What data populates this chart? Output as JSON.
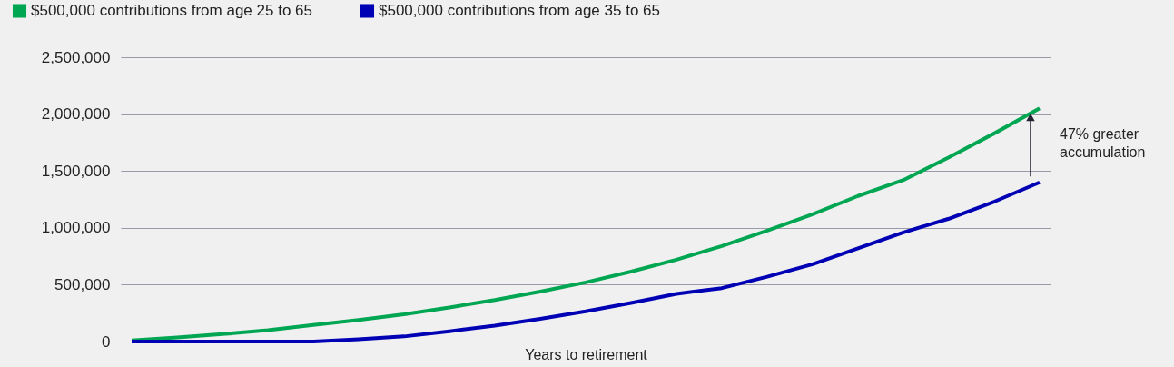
{
  "chart_data": {
    "type": "line",
    "xlabel": "Years to retirement",
    "categories": [
      null,
      null,
      null,
      null,
      null,
      null,
      null,
      null,
      null,
      null,
      null,
      null,
      null,
      null,
      null,
      null,
      null,
      null,
      null,
      null,
      null
    ],
    "series": [
      {
        "name": "$500,000 contributions from age 25 to 65",
        "color": "#00a651",
        "values": [
          10000,
          35000,
          65000,
          100000,
          145000,
          190000,
          240000,
          300000,
          365000,
          440000,
          520000,
          615000,
          720000,
          840000,
          975000,
          1120000,
          1280000,
          1420000,
          1620000,
          1830000,
          2050000
        ]
      },
      {
        "name": "$500,000 contributions from age 35 to 65",
        "color": "#0000b4",
        "values": [
          0,
          0,
          0,
          0,
          0,
          20000,
          45000,
          90000,
          140000,
          200000,
          265000,
          340000,
          420000,
          470000,
          570000,
          680000,
          820000,
          960000,
          1080000,
          1230000,
          1400000
        ]
      }
    ],
    "ylim": [
      0,
      2500000
    ],
    "yticks": [
      0,
      {
        "value": 500000,
        "label": "500,000"
      },
      {
        "value": 1000000,
        "label": "1,000,000"
      },
      {
        "value": 1500000,
        "label": "1,500,000"
      },
      {
        "value": 2000000,
        "label": "2,000,000"
      },
      {
        "value": 2500000,
        "label": "2,500,000"
      }
    ],
    "grid": "y",
    "legend": "top left",
    "line_style": "solid",
    "marker": "none",
    "annotations": [
      "47% greater\naccumulation"
    ]
  }
}
